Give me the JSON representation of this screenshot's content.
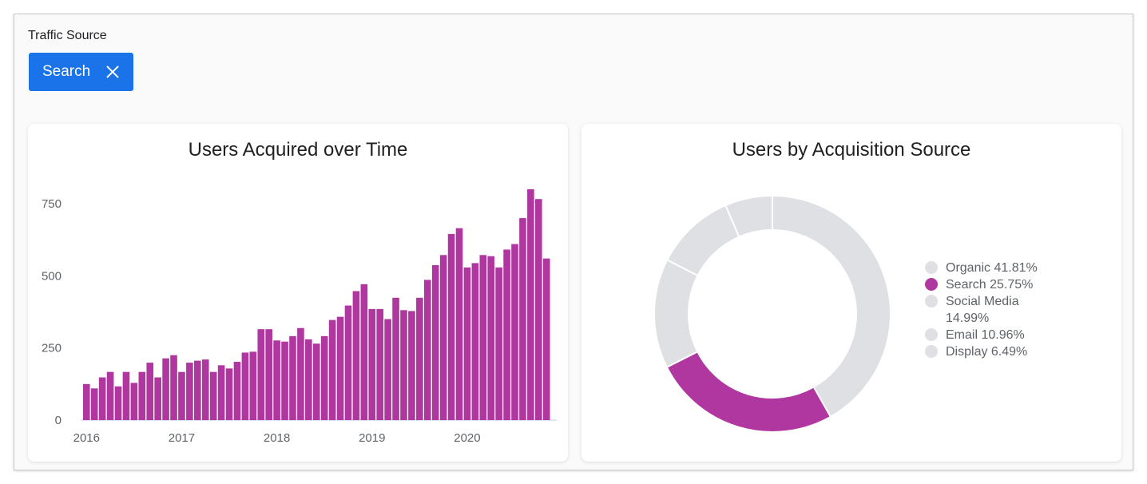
{
  "filter": {
    "label": "Traffic Source",
    "chip_label": "Search",
    "chip_icon": "close-icon",
    "accent": "#1a73e8"
  },
  "chart_data": [
    {
      "type": "bar",
      "title": "Users Acquired over Time",
      "color": "#b0379f",
      "x_tick_labels": [
        "2016",
        "2017",
        "2018",
        "2019",
        "2020"
      ],
      "y_tick_labels": [
        "0",
        "250",
        "500",
        "750"
      ],
      "ylim": [
        0,
        800
      ],
      "x_start": "2016-01",
      "x_interval": "month",
      "values": [
        125,
        110,
        148,
        167,
        117,
        167,
        129,
        167,
        199,
        148,
        214,
        225,
        167,
        199,
        206,
        210,
        167,
        190,
        179,
        202,
        234,
        237,
        315,
        315,
        276,
        272,
        291,
        319,
        280,
        265,
        291,
        347,
        358,
        397,
        447,
        471,
        385,
        385,
        350,
        424,
        381,
        378,
        424,
        486,
        537,
        572,
        645,
        665,
        529,
        544,
        572,
        568,
        529,
        591,
        610,
        700,
        800,
        766,
        560
      ],
      "grid": false
    },
    {
      "type": "pie",
      "title": "Users by Acquisition Source",
      "donut": true,
      "legend_position": "right",
      "slices": [
        {
          "name": "Organic",
          "value": 41.81,
          "label": "Organic 41.81%",
          "color": "#dfe0e3"
        },
        {
          "name": "Search",
          "value": 25.75,
          "label": "Search 25.75%",
          "color": "#b0379f"
        },
        {
          "name": "Social Media",
          "value": 14.99,
          "label": "Social Media 14.99%",
          "color": "#dfe0e3"
        },
        {
          "name": "Email",
          "value": 10.96,
          "label": "Email 10.96%",
          "color": "#dfe0e3"
        },
        {
          "name": "Display",
          "value": 6.49,
          "label": "Display 6.49%",
          "color": "#dfe0e3"
        }
      ]
    }
  ]
}
